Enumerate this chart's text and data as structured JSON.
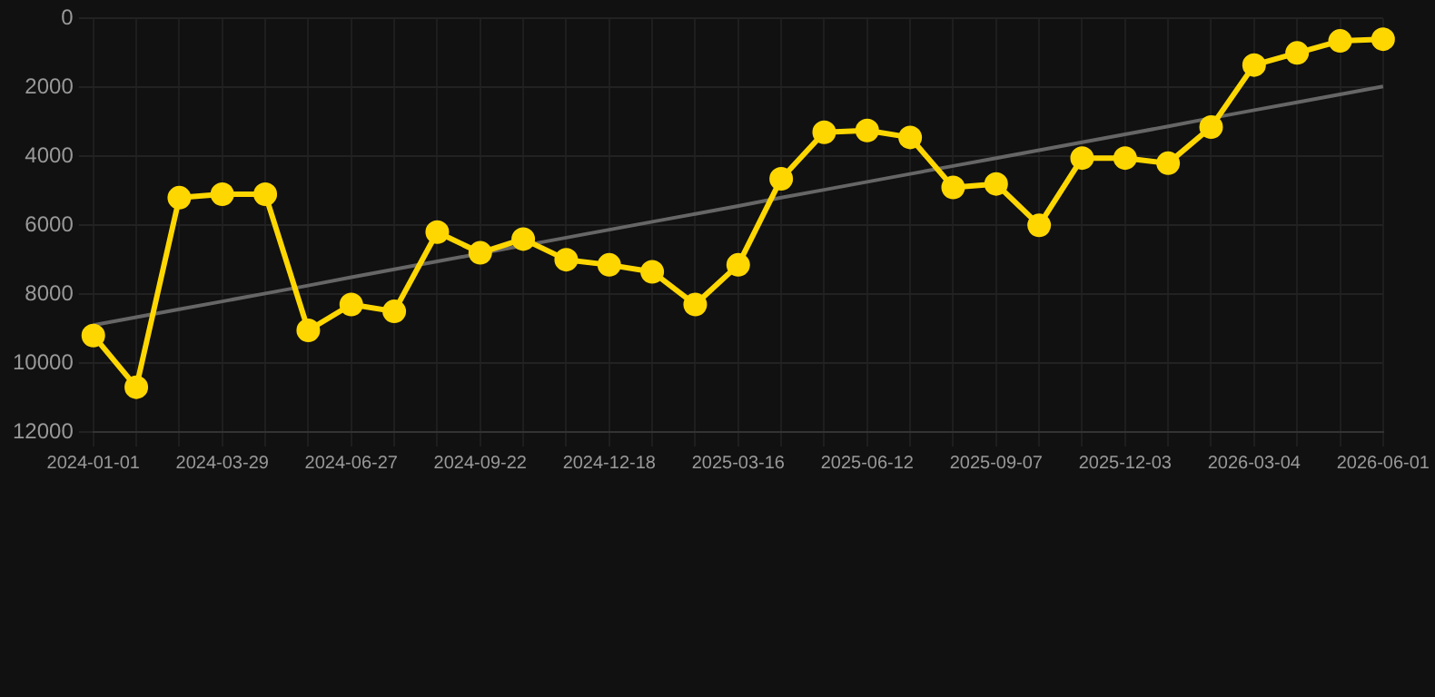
{
  "chart_data": {
    "type": "line",
    "categories": [
      "2024-01-01",
      null,
      null,
      "2024-03-29",
      null,
      null,
      "2024-06-27",
      null,
      null,
      "2024-09-22",
      null,
      null,
      "2024-12-18",
      null,
      null,
      "2025-03-16",
      null,
      null,
      "2025-06-12",
      null,
      null,
      "2025-09-07",
      null,
      null,
      "2025-12-03",
      null,
      null,
      "2026-03-04",
      null,
      null,
      "2026-06-01"
    ],
    "series": [
      {
        "color": "#ffd700",
        "marker": "circle",
        "values": [
          9200,
          10700,
          5200,
          5100,
          5100,
          9050,
          8300,
          8500,
          6200,
          6800,
          6400,
          7000,
          7150,
          7350,
          8300,
          7150,
          4650,
          3300,
          3250,
          3450,
          4900,
          4800,
          6000,
          4050,
          4050,
          4200,
          3150,
          1350,
          1000,
          650,
          600
        ]
      },
      {
        "color": "#666666",
        "marker": "none",
        "values": [
          8900,
          8670,
          8440,
          8210,
          7980,
          7750,
          7510,
          7280,
          7050,
          6820,
          6590,
          6360,
          6130,
          5900,
          5670,
          5440,
          5200,
          4970,
          4740,
          4510,
          4280,
          4050,
          3820,
          3590,
          3360,
          3130,
          2890,
          2660,
          2430,
          2200,
          1970
        ]
      }
    ],
    "ylim": [
      12000,
      0
    ],
    "yticks": [
      0,
      2000,
      4000,
      6000,
      8000,
      10000,
      12000
    ],
    "grid": true,
    "legend": false
  }
}
